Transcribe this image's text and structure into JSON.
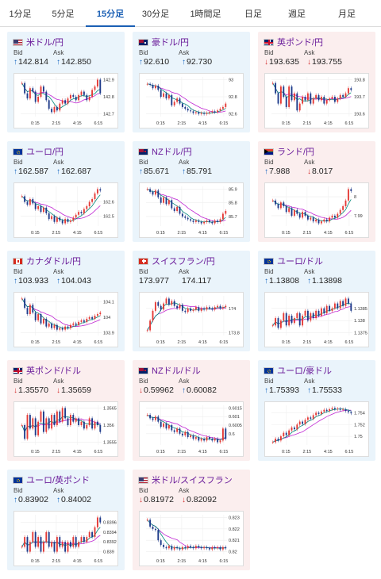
{
  "tabs": [
    {
      "label": "1分足",
      "active": false
    },
    {
      "label": "5分足",
      "active": false
    },
    {
      "label": "15分足",
      "active": true
    },
    {
      "label": "30分足",
      "active": false
    },
    {
      "label": "1時間足",
      "active": false
    },
    {
      "label": "日足",
      "active": false
    },
    {
      "label": "週足",
      "active": false
    },
    {
      "label": "月足",
      "active": false
    }
  ],
  "labels": {
    "bid": "Bid",
    "ask": "Ask"
  },
  "colors": {
    "up_bg": "#eaf4fb",
    "down_bg": "#fbeeee",
    "up_arrow": "#1565c0",
    "down_arrow": "#d32f2f",
    "candle_up": "#e53935",
    "candle_down": "#1e3a8a",
    "ma_long": "#c026d3",
    "ma_short": "#00897b",
    "pair_text": "#6a1b9a"
  },
  "cards": [
    {
      "name": "米ドル/円",
      "flag": "us",
      "dir": "up",
      "bid": "142.814",
      "ask": "142.850",
      "bid_dir": "up",
      "ask_dir": "up",
      "yticks": [
        "142.9",
        "142.8",
        "142.7"
      ],
      "xticks": [
        "0:15",
        "2:15",
        "4:15",
        "6:15"
      ],
      "closes": [
        142.88,
        142.82,
        142.79,
        142.85,
        142.83,
        142.77,
        142.8,
        142.86,
        142.83,
        142.78,
        142.73,
        142.71,
        142.74,
        142.72,
        142.76,
        142.78,
        142.76,
        142.79,
        142.81,
        142.8,
        142.78,
        142.81,
        142.83,
        142.81,
        142.78,
        142.8,
        142.84,
        142.86,
        142.9,
        142.82
      ]
    },
    {
      "name": "豪ドル/円",
      "flag": "au",
      "dir": "up",
      "bid": "92.610",
      "ask": "92.730",
      "bid_dir": "up",
      "ask_dir": "up",
      "yticks": [
        "93",
        "92.8",
        "92.6"
      ],
      "xticks": [
        "0:15",
        "2:15",
        "4:15",
        "6:15"
      ],
      "closes": [
        92.95,
        92.94,
        92.9,
        92.93,
        92.88,
        92.8,
        92.84,
        92.78,
        92.82,
        92.7,
        92.74,
        92.78,
        92.72,
        92.68,
        92.66,
        92.64,
        92.63,
        92.61,
        92.62,
        92.6,
        92.61,
        92.6,
        92.61,
        92.62,
        92.63,
        92.62,
        92.64,
        92.66,
        92.68,
        92.72
      ]
    },
    {
      "name": "英ポンド/円",
      "flag": "gb",
      "dir": "down",
      "bid": "193.635",
      "ask": "193.755",
      "bid_dir": "down",
      "ask_dir": "down",
      "yticks": [
        "193.8",
        "193.7",
        "193.6"
      ],
      "xticks": [
        "0:15",
        "2:15",
        "4:15",
        "6:15"
      ],
      "closes": [
        193.78,
        193.72,
        193.66,
        193.76,
        193.7,
        193.64,
        193.76,
        193.68,
        193.72,
        193.62,
        193.66,
        193.7,
        193.68,
        193.72,
        193.66,
        193.69,
        193.71,
        193.68,
        193.7,
        193.66,
        193.68,
        193.69,
        193.7,
        193.67,
        193.69,
        193.71,
        193.7,
        193.72,
        193.75,
        193.74
      ]
    },
    {
      "name": "ユーロ/円",
      "flag": "eu",
      "dir": "up",
      "bid": "162.587",
      "ask": "162.687",
      "bid_dir": "up",
      "ask_dir": "up",
      "yticks": [
        "162.6",
        "162.5"
      ],
      "xticks": [
        "0:15",
        "2:15",
        "4:15",
        "6:15"
      ],
      "closes": [
        162.64,
        162.6,
        162.58,
        162.62,
        162.59,
        162.55,
        162.57,
        162.53,
        162.56,
        162.52,
        162.48,
        162.5,
        162.46,
        162.49,
        162.47,
        162.45,
        162.48,
        162.46,
        162.47,
        162.49,
        162.51,
        162.53,
        162.52,
        162.55,
        162.57,
        162.6,
        162.62,
        162.66,
        162.69,
        162.68
      ]
    },
    {
      "name": "NZドル/円",
      "flag": "nz",
      "dir": "up",
      "bid": "85.671",
      "ask": "85.791",
      "bid_dir": "up",
      "ask_dir": "up",
      "yticks": [
        "85.9",
        "85.8",
        "85.7"
      ],
      "xticks": [
        "0:15",
        "2:15",
        "4:15",
        "6:15"
      ],
      "closes": [
        85.9,
        85.88,
        85.86,
        85.89,
        85.84,
        85.8,
        85.84,
        85.79,
        85.82,
        85.76,
        85.74,
        85.77,
        85.72,
        85.7,
        85.69,
        85.68,
        85.67,
        85.66,
        85.67,
        85.66,
        85.65,
        85.66,
        85.67,
        85.66,
        85.65,
        85.67,
        85.66,
        85.68,
        85.72,
        85.74
      ]
    },
    {
      "name": "ランド/円",
      "flag": "za",
      "dir": "down",
      "bid": "7.988",
      "ask": "8.017",
      "bid_dir": "up",
      "ask_dir": "down",
      "yticks": [
        "8",
        "7.99"
      ],
      "xticks": [
        "0:15",
        "2:15",
        "4:15",
        "6:15"
      ],
      "closes": [
        7.998,
        7.996,
        7.994,
        7.997,
        7.995,
        7.992,
        7.994,
        7.99,
        7.993,
        7.991,
        7.989,
        7.992,
        7.99,
        7.988,
        7.989,
        7.987,
        7.988,
        7.986,
        7.987,
        7.988,
        7.987,
        7.989,
        7.99,
        7.989,
        7.991,
        7.993,
        7.995,
        7.998,
        8.004,
        8.003
      ]
    },
    {
      "name": "カナダドル/円",
      "flag": "ca",
      "dir": "up",
      "bid": "103.933",
      "ask": "104.043",
      "bid_dir": "up",
      "ask_dir": "up",
      "yticks": [
        "104.1",
        "104",
        "103.9"
      ],
      "xticks": [
        "0:15",
        "2:15",
        "4:15",
        "6:15"
      ],
      "closes": [
        104.12,
        104.06,
        104.02,
        104.08,
        104.03,
        103.98,
        104.02,
        103.96,
        103.99,
        103.94,
        103.96,
        103.93,
        103.95,
        103.92,
        103.93,
        103.92,
        103.94,
        103.93,
        103.95,
        103.96,
        103.95,
        103.97,
        103.98,
        103.97,
        103.99,
        104.0,
        103.99,
        104.01,
        104.02,
        104.03
      ]
    },
    {
      "name": "スイスフラン/円",
      "flag": "ch",
      "dir": "up",
      "bid": "173.977",
      "ask": "174.117",
      "bid_dir": "",
      "ask_dir": "",
      "yticks": [
        "174",
        "173.8"
      ],
      "xticks": [
        "0:15",
        "2:15",
        "4:15",
        "6:15"
      ],
      "closes": [
        173.82,
        173.9,
        173.98,
        174.05,
        174.02,
        173.99,
        174.04,
        174.08,
        174.03,
        174.06,
        174.02,
        174.0,
        174.03,
        173.98,
        173.97,
        174.0,
        173.98,
        173.99,
        174.01,
        173.98,
        174.0,
        173.99,
        174.01,
        174.0,
        173.99,
        174.01,
        174.02,
        174.0,
        174.01,
        174.02
      ]
    },
    {
      "name": "ユーロ/ドル",
      "flag": "eu",
      "dir": "up",
      "bid": "1.13808",
      "ask": "1.13898",
      "bid_dir": "up",
      "ask_dir": "up",
      "yticks": [
        "1.1385",
        "1.138",
        "1.1375"
      ],
      "xticks": [
        "0:15",
        "2:15",
        "4:15",
        "6:15"
      ],
      "closes": [
        1.1378,
        1.1381,
        1.1377,
        1.138,
        1.1383,
        1.1378,
        1.1382,
        1.1379,
        1.1381,
        1.1383,
        1.1378,
        1.1382,
        1.1384,
        1.138,
        1.1383,
        1.1381,
        1.1384,
        1.1382,
        1.1385,
        1.1383,
        1.1386,
        1.1384,
        1.1385,
        1.1387,
        1.1385,
        1.1388,
        1.1386,
        1.1389,
        1.1387,
        1.1384
      ]
    },
    {
      "name": "英ポンド/ドル",
      "flag": "gb",
      "dir": "down",
      "bid": "1.35570",
      "ask": "1.35659",
      "bid_dir": "down",
      "ask_dir": "down",
      "yticks": [
        "1.3565",
        "1.356",
        "1.3555"
      ],
      "xticks": [
        "0:15",
        "2:15",
        "4:15",
        "6:15"
      ],
      "closes": [
        1.356,
        1.3556,
        1.3563,
        1.3559,
        1.3562,
        1.3557,
        1.3561,
        1.3564,
        1.3558,
        1.3562,
        1.3559,
        1.3563,
        1.356,
        1.3564,
        1.3561,
        1.3565,
        1.3562,
        1.356,
        1.3563,
        1.3561,
        1.3562,
        1.356,
        1.3561,
        1.3559,
        1.356,
        1.3562,
        1.3559,
        1.3561,
        1.356,
        1.3558
      ]
    },
    {
      "name": "NZドル/ドル",
      "flag": "nz",
      "dir": "down",
      "bid": "0.59962",
      "ask": "0.60082",
      "bid_dir": "down",
      "ask_dir": "up",
      "yticks": [
        "0.6015",
        "0.601",
        "0.6005",
        "0.6"
      ],
      "xticks": [
        "0:15",
        "2:15",
        "4:15",
        "6:15"
      ],
      "closes": [
        0.6011,
        0.6009,
        0.6008,
        0.601,
        0.6007,
        0.6004,
        0.6006,
        0.6003,
        0.6005,
        0.6002,
        0.6001,
        0.6003,
        0.6,
        0.5999,
        0.6001,
        0.5998,
        0.5999,
        0.5997,
        0.5998,
        0.5996,
        0.5997,
        0.5996,
        0.5998,
        0.5997,
        0.5996,
        0.5997,
        0.5995,
        0.5996,
        0.6003,
        0.5997
      ]
    },
    {
      "name": "ユーロ/豪ドル",
      "flag": "eu",
      "dir": "up",
      "bid": "1.75393",
      "ask": "1.75533",
      "bid_dir": "up",
      "ask_dir": "up",
      "yticks": [
        "1.754",
        "1.752",
        "1.75"
      ],
      "xticks": [
        "0:15",
        "2:15",
        "4:15",
        "6:15"
      ],
      "closes": [
        1.749,
        1.7496,
        1.7493,
        1.75,
        1.7506,
        1.7502,
        1.751,
        1.7515,
        1.7512,
        1.752,
        1.7525,
        1.7521,
        1.7528,
        1.7532,
        1.753,
        1.7536,
        1.754,
        1.7538,
        1.7542,
        1.7545,
        1.7543,
        1.7546,
        1.7548,
        1.7546,
        1.7547,
        1.7545,
        1.7546,
        1.7543,
        1.7541,
        1.7539
      ]
    },
    {
      "name": "ユーロ/英ポンド",
      "flag": "eu",
      "dir": "up",
      "bid": "0.83902",
      "ask": "0.84002",
      "bid_dir": "up",
      "ask_dir": "up",
      "yticks": [
        "0.8396",
        "0.8394",
        "0.8392",
        "0.839"
      ],
      "xticks": [
        "0:15",
        "2:15",
        "4:15",
        "6:15"
      ],
      "closes": [
        0.8391,
        0.8393,
        0.839,
        0.8392,
        0.8394,
        0.8391,
        0.8393,
        0.839,
        0.8392,
        0.8394,
        0.8391,
        0.8392,
        0.839,
        0.8393,
        0.8391,
        0.8392,
        0.839,
        0.8392,
        0.8391,
        0.8393,
        0.8391,
        0.8392,
        0.8393,
        0.8392,
        0.8393,
        0.8394,
        0.8393,
        0.8395,
        0.8397,
        0.8396
      ]
    },
    {
      "name": "米ドル/スイスフラン",
      "flag": "us",
      "dir": "down",
      "bid": "0.81972",
      "ask": "0.82092",
      "bid_dir": "down",
      "ask_dir": "down",
      "yticks": [
        "0.823",
        "0.822",
        "0.821",
        "0.82"
      ],
      "xticks": [
        "0:15",
        "2:15",
        "4:15",
        "6:15"
      ],
      "closes": [
        0.8228,
        0.8222,
        0.822,
        0.8219,
        0.821,
        0.8206,
        0.8204,
        0.8203,
        0.8205,
        0.8202,
        0.8204,
        0.8203,
        0.8202,
        0.8204,
        0.8203,
        0.8205,
        0.8204,
        0.8203,
        0.8205,
        0.8204,
        0.8203,
        0.8204,
        0.8203,
        0.8202,
        0.8204,
        0.8203,
        0.8204,
        0.8202,
        0.8204,
        0.8203
      ]
    }
  ]
}
